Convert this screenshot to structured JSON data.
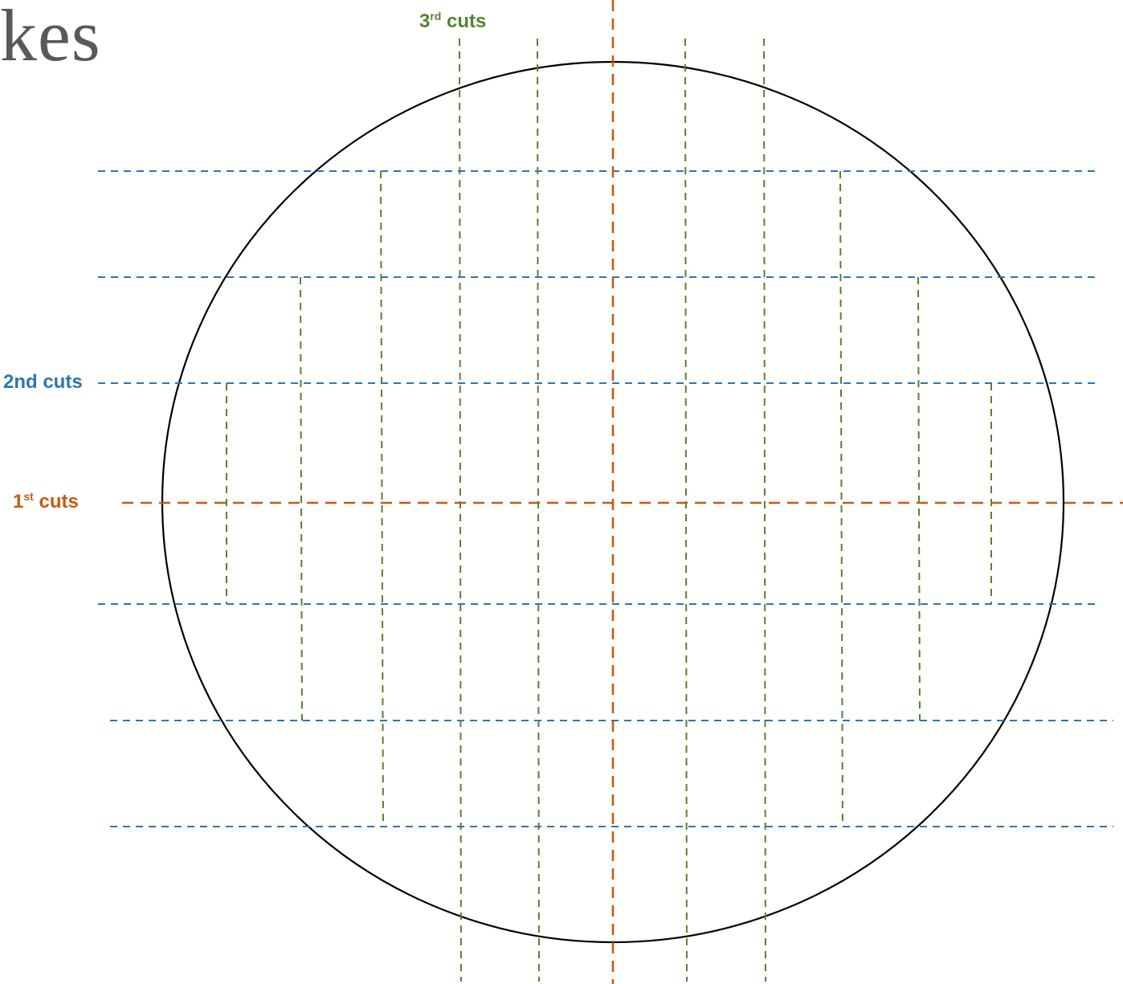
{
  "title_fragment": "kes",
  "labels": {
    "first_cuts": {
      "num": "1",
      "sup": "st",
      "word": "cuts"
    },
    "second_cuts": {
      "text": "2nd cuts"
    },
    "third_cuts": {
      "num": "3",
      "sup": "rd",
      "word": "cuts"
    }
  },
  "colors": {
    "first_cuts": "#C55A11",
    "second_cuts": "#2E75B6",
    "third_cuts": "#548235",
    "outline": "#000000",
    "title": "#595959"
  }
}
